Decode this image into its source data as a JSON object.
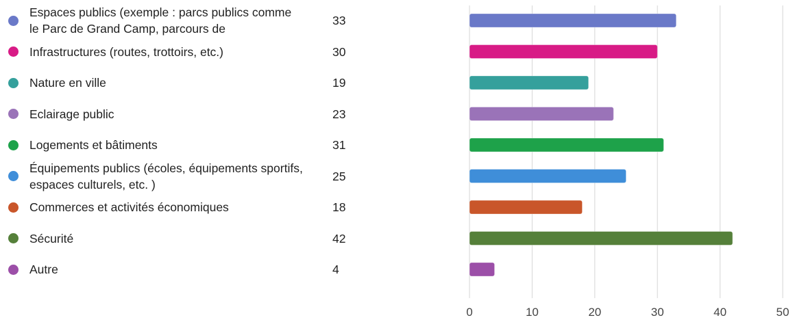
{
  "chart_data": {
    "type": "bar",
    "orientation": "horizontal",
    "categories": [
      "Espaces publics (exemple : parcs publics comme le Parc de Grand Camp, parcours de",
      "Infrastructures (routes, trottoirs, etc.)",
      "Nature en ville",
      "Eclairage public",
      "Logements et bâtiments",
      "Équipements publics (écoles, équipements sportifs, espaces culturels, etc. )",
      "Commerces et activités économiques",
      "Sécurité",
      "Autre"
    ],
    "values": [
      33,
      30,
      19,
      23,
      31,
      25,
      18,
      42,
      4
    ],
    "value_labels": [
      "33",
      "30",
      "19",
      "23",
      "31",
      "25",
      "18",
      "42",
      "4"
    ],
    "colors": [
      "#6a79c8",
      "#d81b86",
      "#35a09c",
      "#9a73b8",
      "#1ea24a",
      "#3f8ed9",
      "#c9562a",
      "#55803a",
      "#9c4fa8"
    ],
    "xlim": [
      0,
      50
    ],
    "xticks": [
      "0",
      "10",
      "20",
      "30",
      "40",
      "50"
    ],
    "xtick_values": [
      0,
      10,
      20,
      30,
      40,
      50
    ],
    "grid": "vertical",
    "legend": "left"
  }
}
